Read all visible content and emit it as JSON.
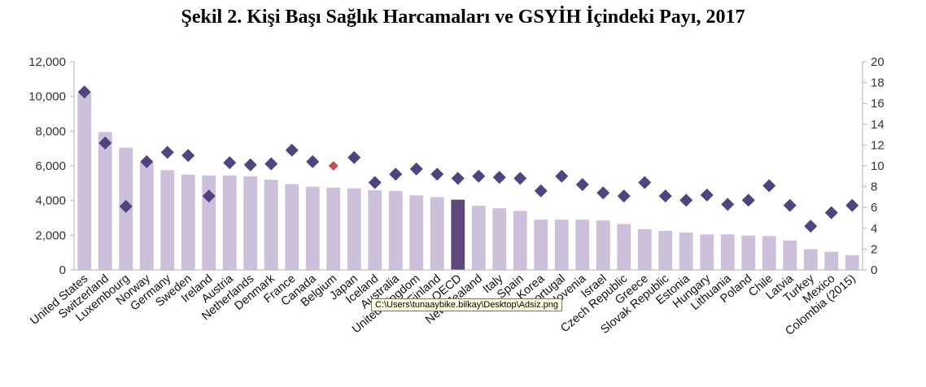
{
  "title": "Şekil 2. Kişi Başı Sağlık Harcamaları ve GSYİH İçindeki Payı, 2017",
  "tooltip": "C:\\Users\\tunaaybike.bilkay\\Desktop\\Adsiz.png",
  "colors": {
    "bar": "#ccc0da",
    "bar_highlight": "#5f497a",
    "marker": "#4f4380",
    "marker_highlight": "#c0504d",
    "axis": "#b3b3b3"
  },
  "chart_data": {
    "type": "bar",
    "title": "Şekil 2. Kişi Başı Sağlık Harcamaları ve GSYİH İçindeki Payı, 2017",
    "xlabel": "",
    "ylabel": "",
    "ylim": [
      0,
      12000
    ],
    "y2lim": [
      0,
      20
    ],
    "yticks": [
      "0",
      "2,000",
      "4,000",
      "6,000",
      "8,000",
      "10,000",
      "12,000"
    ],
    "y2ticks": [
      "0",
      "2",
      "4",
      "6",
      "8",
      "10",
      "12",
      "14",
      "16",
      "18",
      "20"
    ],
    "grid": false,
    "legend": "none",
    "highlight_bar": "OECD",
    "highlight_marker": "Belgium",
    "categories": [
      "United States",
      "Switzerland",
      "Luxembourg",
      "Norway",
      "Germany",
      "Sweden",
      "Ireland",
      "Austria",
      "Netherlands",
      "Denmark",
      "France",
      "Canada",
      "Belgium",
      "Japan",
      "Iceland",
      "Australia",
      "United Kingdom",
      "Finland",
      "OECD",
      "New Zealand",
      "Italy",
      "Spain",
      "Korea",
      "Portugal",
      "Slovenia",
      "Israel",
      "Czech Republic",
      "Greece",
      "Slovak Republic",
      "Estonia",
      "Hungary",
      "Lithuania",
      "Poland",
      "Chile",
      "Latvia",
      "Turkey",
      "Mexico",
      "Colombia (2015)"
    ],
    "series": [
      {
        "axis": "left",
        "type": "bar",
        "values": [
          10200,
          7950,
          7050,
          6200,
          5750,
          5500,
          5450,
          5450,
          5400,
          5200,
          4950,
          4800,
          4750,
          4700,
          4600,
          4550,
          4300,
          4200,
          4050,
          3700,
          3550,
          3400,
          2900,
          2900,
          2900,
          2850,
          2650,
          2350,
          2250,
          2150,
          2050,
          2050,
          1980,
          1950,
          1700,
          1200,
          1050,
          850
        ]
      },
      {
        "axis": "right",
        "type": "scatter",
        "values": [
          17.1,
          12.2,
          6.1,
          10.4,
          11.3,
          11.0,
          7.1,
          10.3,
          10.1,
          10.2,
          11.5,
          10.4,
          10.0,
          10.8,
          8.4,
          9.2,
          9.7,
          9.2,
          8.8,
          9.0,
          8.9,
          8.8,
          7.6,
          9.0,
          8.2,
          7.4,
          7.1,
          8.4,
          7.1,
          6.7,
          7.2,
          6.3,
          6.7,
          8.1,
          6.2,
          4.2,
          5.5,
          6.2
        ]
      }
    ]
  }
}
